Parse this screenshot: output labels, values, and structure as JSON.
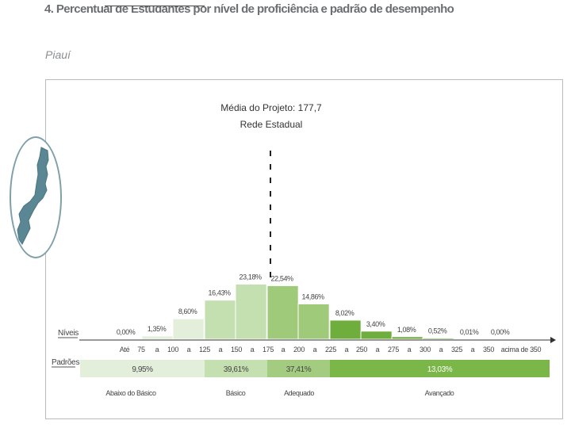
{
  "header": {
    "title": "4. Percentual de Estudantes por nível de proficiência e padrão de desempenho",
    "state": "Piauí"
  },
  "chart_data": {
    "type": "bar",
    "annotation": [
      "Média do Projeto: 177,7",
      "Rede Estadual"
    ],
    "mean_value": 177.7,
    "niveis_label": "Níveis",
    "padroes_label": "Padrões",
    "tick_labels": [
      "Até",
      "75",
      "a",
      "100",
      "a",
      "125",
      "a",
      "150",
      "a",
      "175",
      "a",
      "200",
      "a",
      "225",
      "a",
      "250",
      "a",
      "275",
      "a",
      "300",
      "a",
      "325",
      "a",
      "350",
      "acima de 350"
    ],
    "bins": [
      {
        "range": "Até 75",
        "value": 0.0,
        "label": "0,00%",
        "standard": "Abaixo do Básico"
      },
      {
        "range": "75 a 100",
        "value": 1.35,
        "label": "1,35%",
        "standard": "Abaixo do Básico"
      },
      {
        "range": "100 a 125",
        "value": 8.6,
        "label": "8,60%",
        "standard": "Abaixo do Básico"
      },
      {
        "range": "125 a 150",
        "value": 16.43,
        "label": "16,43%",
        "standard": "Básico"
      },
      {
        "range": "150 a 175",
        "value": 23.18,
        "label": "23,18%",
        "standard": "Básico"
      },
      {
        "range": "175 a 200",
        "value": 22.54,
        "label": "22,54%",
        "standard": "Adequado"
      },
      {
        "range": "200 a 225",
        "value": 14.86,
        "label": "14,86%",
        "standard": "Adequado"
      },
      {
        "range": "225 a 250",
        "value": 8.02,
        "label": "8,02%",
        "standard": "Avançado"
      },
      {
        "range": "250 a 275",
        "value": 3.4,
        "label": "3,40%",
        "standard": "Avançado"
      },
      {
        "range": "275 a 300",
        "value": 1.08,
        "label": "1,08%",
        "standard": "Avançado"
      },
      {
        "range": "300 a 325",
        "value": 0.52,
        "label": "0,52%",
        "standard": "Avançado"
      },
      {
        "range": "325 a 350",
        "value": 0.01,
        "label": "0,01%",
        "standard": "Avançado"
      },
      {
        "range": "acima de 350",
        "value": 0.0,
        "label": "0,00%",
        "standard": "Avançado"
      }
    ],
    "standards": [
      {
        "name": "Abaixo do Básico",
        "value": 9.95,
        "label": "9,95%",
        "color": "#e3eedb",
        "bar_color": "#e3eedb"
      },
      {
        "name": "Básico",
        "value": 39.61,
        "label": "39,61%",
        "color": "#c4dfb0",
        "bar_color": "#c4dfb0"
      },
      {
        "name": "Adequado",
        "value": 37.41,
        "label": "37,41%",
        "color": "#a4cc80",
        "bar_color": "#9fca7a"
      },
      {
        "name": "Avançado",
        "value": 13.03,
        "label": "13,03%",
        "color": "#7ab648",
        "bar_color": "#6fae3d"
      }
    ]
  }
}
